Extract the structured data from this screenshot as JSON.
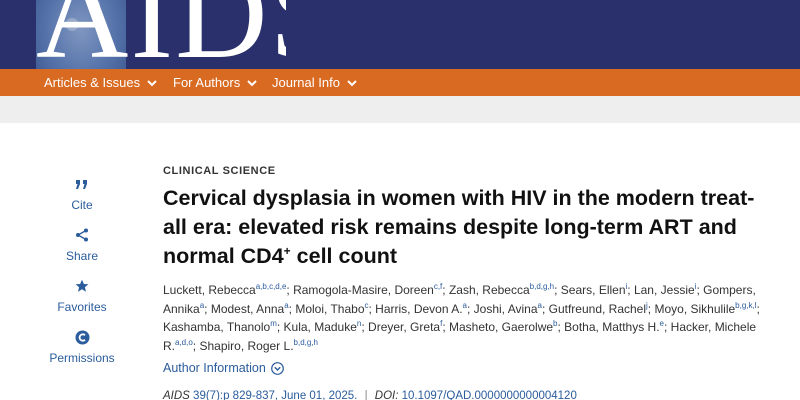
{
  "masthead": {
    "logo_text": "AIDS"
  },
  "nav": {
    "items": [
      {
        "label": "Articles & Issues"
      },
      {
        "label": "For Authors"
      },
      {
        "label": "Journal Info"
      }
    ]
  },
  "rail": {
    "items": [
      {
        "label": "Cite",
        "icon": "quote-icon"
      },
      {
        "label": "Share",
        "icon": "share-icon"
      },
      {
        "label": "Favorites",
        "icon": "star-icon"
      },
      {
        "label": "Permissions",
        "icon": "copyright-icon"
      }
    ]
  },
  "article": {
    "section": "CLINICAL SCIENCE",
    "title_main": "Cervical dysplasia in women with HIV in the modern treat-all era: elevated risk remains despite long-term ART and normal CD4",
    "title_sup": "+",
    "title_end": " cell count",
    "authors": [
      {
        "name": "Luckett, Rebecca",
        "sup": "a,b,c,d,e"
      },
      {
        "name": "Ramogola-Masire, Doreen",
        "sup": "c,f"
      },
      {
        "name": "Zash, Rebecca",
        "sup": "b,d,g,h"
      },
      {
        "name": "Sears, Ellen",
        "sup": "i"
      },
      {
        "name": "Lan, Jessie",
        "sup": "i"
      },
      {
        "name": "Gompers, Annika",
        "sup": "a"
      },
      {
        "name": "Modest, Anna",
        "sup": "a"
      },
      {
        "name": "Moloi, Thabo",
        "sup": "c"
      },
      {
        "name": "Harris, Devon A.",
        "sup": "a"
      },
      {
        "name": "Joshi, Avina",
        "sup": "a"
      },
      {
        "name": "Gutfreund, Rachel",
        "sup": "j"
      },
      {
        "name": "Moyo, Sikhulile",
        "sup": "b,g,k,l"
      },
      {
        "name": "Kashamba, Thanolo",
        "sup": "m"
      },
      {
        "name": "Kula, Maduke",
        "sup": "n"
      },
      {
        "name": "Dreyer, Greta",
        "sup": "f"
      },
      {
        "name": "Masheto, Gaerolwe",
        "sup": "b"
      },
      {
        "name": "Botha, Matthys H.",
        "sup": "e"
      },
      {
        "name": "Hacker, Michele R.",
        "sup": "a,d,o"
      },
      {
        "name": "Shapiro, Roger L.",
        "sup": "b,d,g,h"
      }
    ],
    "author_info_label": "Author Information",
    "citation": {
      "journal": "AIDS",
      "volume_issue": "39(7):p 829-837, June 01, 2025.",
      "separator": "|",
      "doi_label": "DOI:",
      "doi": "10.1097/QAD.0000000000004120"
    }
  },
  "colors": {
    "masthead": "#29306b",
    "nav": "#d86a22",
    "link": "#2b5c9c"
  }
}
